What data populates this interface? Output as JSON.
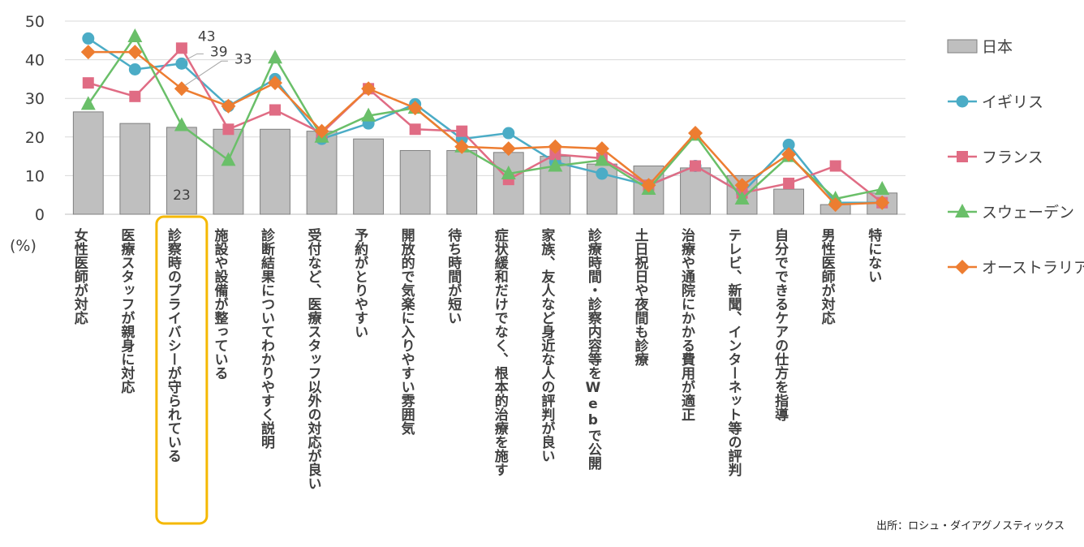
{
  "chart_data": {
    "type": "bar+line",
    "unit_label": "(%)",
    "ylim": [
      0,
      50
    ],
    "yticks": [
      0,
      10,
      20,
      30,
      40,
      50
    ],
    "categories": [
      "女性医師が対応",
      "医療スタッフが親身に対応",
      "診察時のプライバシーが守られている",
      "施設や設備が整っている",
      "診断結果についてわかりやすく説明",
      "受付など、医療スタッフ以外の対応が良い",
      "予約がとりやすい",
      "開放的で気楽に入りやすい雰囲気",
      "待ち時間が短い",
      "症状緩和だけでなく、根本的治療を施す",
      "家族、友人など身近な人の評判が良い",
      "診療時間・診察内容等をWebで公開",
      "土日祝日や夜間も診療",
      "治療や通院にかかる費用が適正",
      "テレビ、新聞、インターネット等の評判",
      "自分でできるケアの仕方を指導",
      "男性医師が対応",
      "特にない"
    ],
    "highlight_category_index": 2,
    "series": [
      {
        "name": "日本",
        "type": "bar",
        "color": "#bfbfbf",
        "values": [
          26.5,
          23.5,
          22.5,
          22,
          22,
          21.5,
          19.5,
          16.5,
          16.5,
          16,
          15,
          13,
          12.5,
          12,
          10,
          6.5,
          2.5,
          5.5
        ]
      },
      {
        "name": "イギリス",
        "type": "line",
        "color": "#4bacc6",
        "marker": "circle",
        "values": [
          45.5,
          37.5,
          39,
          28,
          35,
          19.5,
          23.5,
          28.5,
          19.5,
          21,
          13.5,
          10.5,
          7.5,
          12.5,
          5.5,
          18,
          3,
          3
        ]
      },
      {
        "name": "フランス",
        "type": "line",
        "color": "#e06c84",
        "marker": "square",
        "values": [
          34,
          30.5,
          43,
          22,
          27,
          21,
          32.5,
          22,
          21.5,
          9,
          15.5,
          14.5,
          7.5,
          12.5,
          5.5,
          8,
          12.5,
          3
        ]
      },
      {
        "name": "スウェーデン",
        "type": "line",
        "color": "#6abf69",
        "marker": "triangle",
        "values": [
          28.5,
          46,
          23,
          14,
          40.5,
          20,
          25.5,
          27.5,
          17.5,
          10.5,
          12.5,
          14,
          6.5,
          20.5,
          4,
          15,
          4,
          6.5
        ]
      },
      {
        "name": "オーストラリア",
        "type": "line",
        "color": "#ed7d31",
        "marker": "diamond",
        "values": [
          42,
          42,
          32.5,
          28,
          34,
          21.5,
          32.5,
          27.5,
          17.5,
          17,
          17.5,
          17,
          7.5,
          21,
          7.5,
          15.5,
          2.5,
          3
        ]
      }
    ],
    "data_labels": [
      {
        "text": "43",
        "category_index": 2,
        "series": "フランス"
      },
      {
        "text": "39",
        "category_index": 2,
        "series": "イギリス"
      },
      {
        "text": "33",
        "category_index": 2,
        "series": "オーストラリア"
      },
      {
        "text": "23",
        "category_index": 2,
        "series": "スウェーデン"
      }
    ],
    "legend_position": "right",
    "gridlines": true
  },
  "source_note": "出所：ロシュ・ダイアグノスティックス"
}
